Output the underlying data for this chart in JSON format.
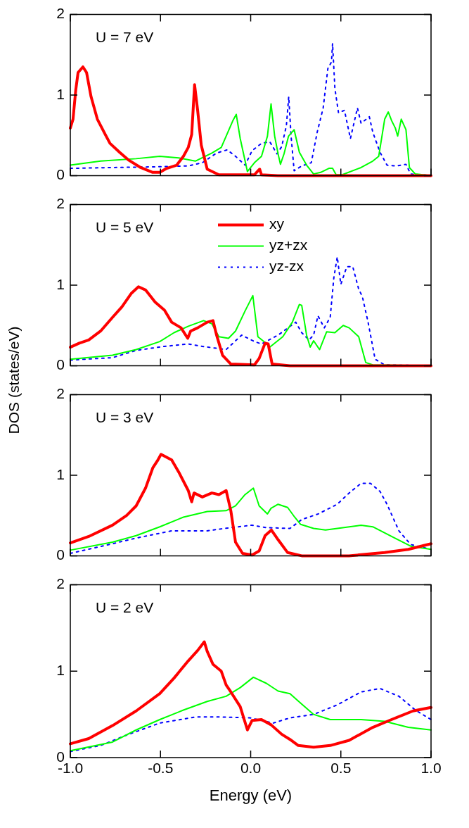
{
  "chart_data": [
    {
      "type": "line",
      "annotations": [
        "U = 7 eV"
      ],
      "xlim": [
        -1,
        1
      ],
      "xticks": [
        -1,
        -0.5,
        0,
        0.5,
        1
      ],
      "ylim": [
        0,
        2
      ],
      "yticks": [
        0,
        1,
        2
      ],
      "tick_labels": "y",
      "grid": false,
      "legend": false,
      "series": [
        {
          "color": "#ff0000",
          "line_style": "solid",
          "x": [
            -1,
            -0.985,
            -0.97,
            -0.957,
            -0.93,
            -0.91,
            -0.885,
            -0.85,
            -0.806,
            -0.78,
            -0.727,
            -0.675,
            -0.61,
            -0.543,
            -0.504,
            -0.465,
            -0.41,
            -0.373,
            -0.346,
            -0.327,
            -0.311,
            -0.294,
            -0.274,
            -0.241,
            -0.176,
            -0.084,
            0.021,
            0.037,
            0.05,
            0.06,
            0.15,
            1
          ],
          "values": [
            0.59,
            0.7,
            1.06,
            1.28,
            1.35,
            1.28,
            0.98,
            0.7,
            0.51,
            0.4,
            0.29,
            0.19,
            0.1,
            0.04,
            0.04,
            0.09,
            0.13,
            0.24,
            0.35,
            0.51,
            1.13,
            0.81,
            0.38,
            0.08,
            0.01,
            0.01,
            0.01,
            0.05,
            0.08,
            0.01,
            0,
            0
          ]
        },
        {
          "color": "#00ff00",
          "line_style": "solid",
          "x": [
            -1,
            -0.832,
            -0.635,
            -0.504,
            -0.4,
            -0.307,
            -0.215,
            -0.163,
            -0.097,
            -0.08,
            -0.058,
            -0.018,
            0.021,
            0.06,
            0.093,
            0.113,
            0.133,
            0.152,
            0.165,
            0.185,
            0.21,
            0.241,
            0.27,
            0.31,
            0.349,
            0.388,
            0.434,
            0.454,
            0.474,
            0.507,
            0.612,
            0.677,
            0.71,
            0.743,
            0.763,
            0.782,
            0.802,
            0.815,
            0.835,
            0.861,
            0.88,
            0.913,
            1
          ],
          "values": [
            0.13,
            0.18,
            0.21,
            0.24,
            0.22,
            0.18,
            0.28,
            0.35,
            0.69,
            0.76,
            0.46,
            0.05,
            0.16,
            0.24,
            0.49,
            0.89,
            0.49,
            0.27,
            0.14,
            0.27,
            0.49,
            0.57,
            0.29,
            0.13,
            0.02,
            0.04,
            0.09,
            0.09,
            0.01,
            0.01,
            0.1,
            0.18,
            0.24,
            0.7,
            0.79,
            0.68,
            0.59,
            0.49,
            0.7,
            0.57,
            0.1,
            0.02,
            0
          ]
        },
        {
          "color": "#0000ff",
          "line_style": "dotted",
          "x": [
            -1,
            -0.766,
            -0.504,
            -0.346,
            -0.268,
            -0.189,
            -0.13,
            -0.084,
            -0.031,
            0.008,
            0.06,
            0.106,
            0.146,
            0.172,
            0.198,
            0.211,
            0.224,
            0.241,
            0.283,
            0.336,
            0.369,
            0.402,
            0.428,
            0.448,
            0.454,
            0.467,
            0.487,
            0.52,
            0.553,
            0.592,
            0.612,
            0.658,
            0.677,
            0.717,
            0.756,
            0.808,
            0.861,
            0.887,
            1
          ],
          "values": [
            0.09,
            0.1,
            0.11,
            0.12,
            0.16,
            0.28,
            0.32,
            0.24,
            0.13,
            0.31,
            0.4,
            0.42,
            0.27,
            0.36,
            0.62,
            0.98,
            0.49,
            0.06,
            0.12,
            0.16,
            0.54,
            0.84,
            1.33,
            1.41,
            1.64,
            1.08,
            0.78,
            0.81,
            0.46,
            0.84,
            0.65,
            0.73,
            0.54,
            0.29,
            0.13,
            0.12,
            0.14,
            0.02,
            0
          ]
        }
      ]
    },
    {
      "type": "line",
      "annotations": [
        "U = 5 eV"
      ],
      "ylabel": "DOS (states/eV)",
      "xlim": [
        -1,
        1
      ],
      "xticks": [
        -1,
        -0.5,
        0,
        0.5,
        1
      ],
      "ylim": [
        0,
        2
      ],
      "yticks": [
        0,
        1,
        2
      ],
      "tick_labels": "y",
      "grid": false,
      "legend": "top",
      "series": [
        {
          "name": "xy",
          "color": "#ff0000",
          "line_style": "solid",
          "x": [
            -1,
            -0.95,
            -0.898,
            -0.832,
            -0.766,
            -0.714,
            -0.661,
            -0.622,
            -0.583,
            -0.53,
            -0.478,
            -0.438,
            -0.386,
            -0.349,
            -0.333,
            -0.294,
            -0.241,
            -0.209,
            -0.189,
            -0.156,
            -0.11,
            0.021,
            0.047,
            0.08,
            0.097,
            0.119,
            0.218,
            1
          ],
          "values": [
            0.23,
            0.28,
            0.32,
            0.43,
            0.6,
            0.73,
            0.9,
            0.98,
            0.94,
            0.79,
            0.69,
            0.54,
            0.47,
            0.34,
            0.43,
            0.47,
            0.54,
            0.56,
            0.38,
            0.13,
            0.02,
            0.01,
            0.09,
            0.28,
            0.27,
            0.02,
            0,
            0
          ]
        },
        {
          "name": "yz+zx",
          "color": "#00ff00",
          "line_style": "solid",
          "x": [
            -1,
            -0.766,
            -0.635,
            -0.504,
            -0.425,
            -0.346,
            -0.261,
            -0.215,
            -0.176,
            -0.123,
            -0.084,
            -0.031,
            0.012,
            0.04,
            0.073,
            0.106,
            0.178,
            0.231,
            0.27,
            0.283,
            0.31,
            0.33,
            0.349,
            0.382,
            0.421,
            0.467,
            0.513,
            0.546,
            0.599,
            0.638,
            0.677,
            1
          ],
          "values": [
            0.08,
            0.13,
            0.2,
            0.3,
            0.41,
            0.49,
            0.56,
            0.52,
            0.36,
            0.34,
            0.43,
            0.68,
            0.87,
            0.36,
            0.3,
            0.23,
            0.36,
            0.54,
            0.76,
            0.75,
            0.38,
            0.23,
            0.31,
            0.2,
            0.42,
            0.41,
            0.5,
            0.47,
            0.36,
            0.04,
            0.01,
            0
          ]
        },
        {
          "name": "yz-zx",
          "color": "#0000ff",
          "line_style": "dotted",
          "x": [
            -1,
            -0.766,
            -0.635,
            -0.478,
            -0.346,
            -0.268,
            -0.136,
            -0.05,
            0.021,
            0.06,
            0.152,
            0.25,
            0.283,
            0.323,
            0.349,
            0.373,
            0.408,
            0.441,
            0.461,
            0.48,
            0.5,
            0.533,
            0.566,
            0.599,
            0.619,
            0.651,
            0.69,
            0.743,
            1
          ],
          "values": [
            0.07,
            0.1,
            0.19,
            0.24,
            0.27,
            0.24,
            0.2,
            0.38,
            0.3,
            0.27,
            0.38,
            0.54,
            0.41,
            0.32,
            0.38,
            0.62,
            0.47,
            0.6,
            1.09,
            1.35,
            1.01,
            1.23,
            1.23,
            0.95,
            0.86,
            0.54,
            0.08,
            0.01,
            0
          ]
        }
      ]
    },
    {
      "type": "line",
      "annotations": [
        "U = 3 eV"
      ],
      "xlim": [
        -1,
        1
      ],
      "xticks": [
        -1,
        -0.5,
        0,
        0.5,
        1
      ],
      "ylim": [
        0,
        2
      ],
      "yticks": [
        0,
        1,
        2
      ],
      "tick_labels": "y",
      "grid": false,
      "legend": false,
      "series": [
        {
          "color": "#ff0000",
          "line_style": "solid",
          "x": [
            -1,
            -0.898,
            -0.766,
            -0.688,
            -0.635,
            -0.583,
            -0.543,
            -0.517,
            -0.497,
            -0.438,
            -0.399,
            -0.346,
            -0.327,
            -0.314,
            -0.268,
            -0.215,
            -0.176,
            -0.136,
            -0.11,
            -0.084,
            -0.045,
            0.008,
            0.047,
            0.08,
            0.115,
            0.152,
            0.205,
            0.283,
            0.545,
            0.743,
            0.874,
            1
          ],
          "values": [
            0.16,
            0.24,
            0.38,
            0.5,
            0.62,
            0.84,
            1.09,
            1.18,
            1.26,
            1.19,
            1.04,
            0.81,
            0.67,
            0.78,
            0.73,
            0.78,
            0.76,
            0.81,
            0.56,
            0.17,
            0.03,
            0.01,
            0.06,
            0.25,
            0.32,
            0.2,
            0.04,
            0,
            0,
            0.04,
            0.08,
            0.15
          ]
        },
        {
          "color": "#00ff00",
          "line_style": "solid",
          "x": [
            -1,
            -0.766,
            -0.635,
            -0.504,
            -0.373,
            -0.241,
            -0.136,
            -0.084,
            -0.031,
            0.015,
            0.047,
            0.093,
            0.113,
            0.152,
            0.205,
            0.244,
            0.277,
            0.349,
            0.415,
            0.612,
            0.677,
            0.808,
            0.887,
            1
          ],
          "values": [
            0.07,
            0.17,
            0.25,
            0.36,
            0.48,
            0.55,
            0.56,
            0.62,
            0.76,
            0.84,
            0.62,
            0.52,
            0.59,
            0.64,
            0.6,
            0.48,
            0.39,
            0.34,
            0.32,
            0.38,
            0.36,
            0.21,
            0.12,
            0.08
          ]
        },
        {
          "color": "#0000ff",
          "line_style": "dotted",
          "x": [
            -1,
            -0.766,
            -0.635,
            -0.438,
            -0.241,
            -0.11,
            0.008,
            0.087,
            0.218,
            0.283,
            0.375,
            0.48,
            0.546,
            0.612,
            0.664,
            0.717,
            0.756,
            0.822,
            0.887,
            1
          ],
          "values": [
            0.03,
            0.15,
            0.22,
            0.31,
            0.31,
            0.35,
            0.38,
            0.35,
            0.34,
            0.45,
            0.52,
            0.64,
            0.78,
            0.9,
            0.9,
            0.8,
            0.64,
            0.31,
            0.14,
            0.08
          ]
        }
      ]
    },
    {
      "type": "line",
      "annotations": [
        "U = 2 eV"
      ],
      "xlabel": "Energy (eV)",
      "xlim": [
        -1,
        1
      ],
      "xticks": [
        {
          "value": -1,
          "label": "-1.0"
        },
        {
          "value": -0.5,
          "label": "-0.5"
        },
        {
          "value": 0,
          "label": "0.0"
        },
        {
          "value": 0.5,
          "label": "0.5"
        },
        {
          "value": 1,
          "label": "1.0"
        }
      ],
      "ylim": [
        0,
        2
      ],
      "yticks": [
        0,
        1,
        2
      ],
      "grid": false,
      "legend": false,
      "series": [
        {
          "color": "#ff0000",
          "line_style": "solid",
          "x": [
            -1,
            -0.898,
            -0.766,
            -0.635,
            -0.504,
            -0.425,
            -0.346,
            -0.294,
            -0.257,
            -0.241,
            -0.209,
            -0.163,
            -0.136,
            -0.11,
            -0.058,
            -0.018,
            0.008,
            0.06,
            0.113,
            0.172,
            0.218,
            0.264,
            0.349,
            0.441,
            0.546,
            0.677,
            0.769,
            0.9,
            1
          ],
          "values": [
            0.16,
            0.22,
            0.37,
            0.54,
            0.74,
            0.92,
            1.12,
            1.24,
            1.34,
            1.23,
            1.08,
            1,
            0.84,
            0.76,
            0.59,
            0.32,
            0.43,
            0.44,
            0.38,
            0.27,
            0.21,
            0.14,
            0.12,
            0.14,
            0.2,
            0.35,
            0.43,
            0.54,
            0.58
          ]
        },
        {
          "color": "#00ff00",
          "line_style": "solid",
          "x": [
            -1,
            -0.766,
            -0.635,
            -0.504,
            -0.373,
            -0.241,
            -0.136,
            -0.058,
            0.015,
            0.087,
            0.152,
            0.218,
            0.283,
            0.349,
            0.441,
            0.612,
            0.743,
            0.874,
            1
          ],
          "values": [
            0.08,
            0.18,
            0.32,
            0.44,
            0.55,
            0.65,
            0.71,
            0.81,
            0.93,
            0.86,
            0.77,
            0.74,
            0.62,
            0.5,
            0.44,
            0.44,
            0.42,
            0.35,
            0.32
          ]
        },
        {
          "color": "#0000ff",
          "line_style": "dotted",
          "x": [
            -1,
            -0.832,
            -0.701,
            -0.504,
            -0.307,
            -0.176,
            -0.005,
            0.126,
            0.218,
            0.349,
            0.48,
            0.612,
            0.717,
            0.822,
            0.913,
            1
          ],
          "values": [
            0.07,
            0.14,
            0.25,
            0.4,
            0.47,
            0.47,
            0.46,
            0.4,
            0.46,
            0.5,
            0.61,
            0.76,
            0.8,
            0.71,
            0.55,
            0.44
          ]
        }
      ]
    }
  ]
}
